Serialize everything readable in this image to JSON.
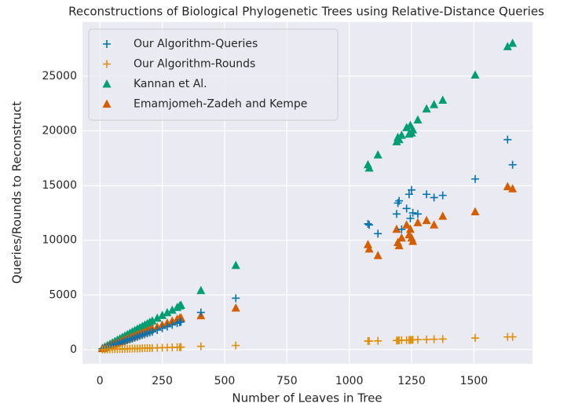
{
  "chart_data": {
    "type": "scatter",
    "title": "Reconstructions of Biological Phylogenetic Trees using Relative-Distance Queries",
    "xlabel": "Number of Leaves in Tree",
    "ylabel": "Queries/Rounds to Reconstruct",
    "x": [
      10,
      20,
      30,
      40,
      50,
      60,
      70,
      80,
      90,
      100,
      110,
      120,
      130,
      140,
      150,
      160,
      170,
      180,
      190,
      200,
      210,
      230,
      250,
      270,
      290,
      310,
      320,
      325,
      405,
      545,
      1075,
      1080,
      1115,
      1190,
      1195,
      1200,
      1210,
      1230,
      1240,
      1245,
      1250,
      1255,
      1275,
      1310,
      1340,
      1375,
      1505,
      1635,
      1655
    ],
    "series": [
      {
        "name": "Kannan et Al.",
        "color": "#029e73",
        "marker": "triangle",
        "values": [
          125,
          250,
          375,
          500,
          625,
          750,
          875,
          1000,
          1125,
          1250,
          1375,
          1500,
          1625,
          1750,
          1875,
          2000,
          2125,
          2250,
          2375,
          2500,
          2625,
          2875,
          3125,
          3375,
          3600,
          3850,
          4000,
          4050,
          5400,
          7700,
          16900,
          16600,
          17800,
          19000,
          19400,
          19200,
          19600,
          20300,
          19700,
          20500,
          19800,
          20100,
          21000,
          22000,
          22400,
          22800,
          25100,
          27700,
          28000
        ]
      },
      {
        "name": "Emamjomeh-Zadeh and Kempe",
        "color": "#d55e00",
        "marker": "triangle",
        "values": [
          90,
          180,
          270,
          360,
          450,
          540,
          630,
          720,
          810,
          900,
          990,
          1080,
          1170,
          1260,
          1350,
          1440,
          1530,
          1620,
          1710,
          1800,
          1890,
          2070,
          2250,
          2430,
          2610,
          2790,
          2880,
          2900,
          3100,
          3800,
          9600,
          9200,
          8600,
          11000,
          9800,
          9500,
          10200,
          11400,
          10500,
          11000,
          10200,
          9900,
          11600,
          11800,
          11400,
          12200,
          12600,
          14900,
          14700
        ]
      },
      {
        "name": "Our Algorithm-Queries",
        "color": "#0173b2",
        "marker": "plus",
        "values": [
          80,
          160,
          230,
          310,
          390,
          470,
          550,
          620,
          700,
          780,
          860,
          940,
          1010,
          1090,
          1170,
          1250,
          1330,
          1400,
          1480,
          1560,
          1640,
          1790,
          1950,
          2100,
          2260,
          2420,
          2500,
          2540,
          3400,
          4700,
          11500,
          11400,
          10600,
          12400,
          13400,
          13600,
          11000,
          12900,
          14200,
          12000,
          14600,
          12500,
          12400,
          14200,
          13900,
          14100,
          15600,
          19200,
          16900
        ]
      },
      {
        "name": "Our Algorithm-Rounds",
        "color": "#de8f05",
        "marker": "plus",
        "values": [
          10,
          15,
          20,
          30,
          35,
          40,
          50,
          55,
          65,
          70,
          75,
          85,
          90,
          100,
          105,
          110,
          120,
          125,
          135,
          140,
          150,
          160,
          175,
          190,
          205,
          215,
          225,
          230,
          300,
          380,
          780,
          790,
          800,
          830,
          840,
          850,
          860,
          870,
          880,
          880,
          890,
          900,
          910,
          930,
          950,
          970,
          1060,
          1160,
          1170
        ]
      }
    ],
    "legend_order": [
      2,
      3,
      0,
      1
    ],
    "legend": "upper left",
    "xlim": [
      -70,
      1735
    ],
    "xticks": [
      0,
      250,
      500,
      750,
      1000,
      1250,
      1500
    ],
    "ylim": [
      -1300,
      29950
    ],
    "yticks": [
      0,
      5000,
      10000,
      15000,
      20000,
      25000
    ],
    "grid": true
  }
}
